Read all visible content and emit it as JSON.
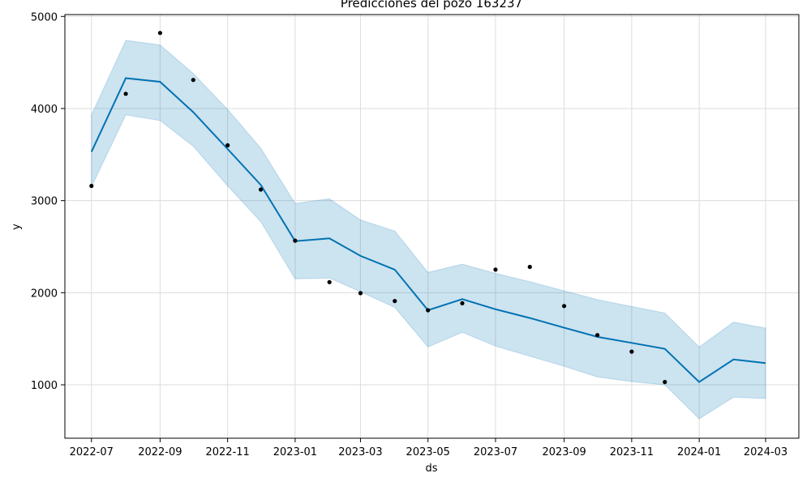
{
  "chart_data": {
    "type": "line",
    "title": "Predicciones del pozo 163237",
    "xlabel": "ds",
    "ylabel": "y",
    "xlim": [
      "2022-06-07",
      "2024-03-31"
    ],
    "ylim": [
      420,
      5020
    ],
    "grid": true,
    "x_ticks": [
      "2022-07",
      "2022-09",
      "2022-11",
      "2023-01",
      "2023-03",
      "2023-05",
      "2023-07",
      "2023-09",
      "2023-11",
      "2024-01",
      "2024-03"
    ],
    "y_ticks": [
      1000,
      2000,
      3000,
      4000,
      5000
    ],
    "colors": {
      "forecast": "#0072b2",
      "band": "#0072b2",
      "actual": "#000000",
      "grid": "#dcdcdc"
    },
    "forecast": {
      "x": [
        "2022-07-01",
        "2022-08-01",
        "2022-09-01",
        "2022-10-01",
        "2022-11-01",
        "2022-12-01",
        "2023-01-01",
        "2023-02-01",
        "2023-03-01",
        "2023-04-01",
        "2023-05-01",
        "2023-06-01",
        "2023-07-01",
        "2023-08-01",
        "2023-09-01",
        "2023-10-01",
        "2023-11-01",
        "2023-12-01",
        "2024-01-01",
        "2024-02-01",
        "2024-03-01"
      ],
      "yhat": [
        3530,
        4330,
        4290,
        3960,
        3560,
        3170,
        2560,
        2590,
        2400,
        2250,
        1810,
        1930,
        1820,
        1725,
        1620,
        1520,
        1455,
        1390,
        1030,
        1275,
        1235
      ],
      "yhat_lower": [
        3150,
        3930,
        3870,
        3590,
        3160,
        2770,
        2150,
        2160,
        2010,
        1840,
        1410,
        1570,
        1420,
        1310,
        1200,
        1085,
        1035,
        1000,
        630,
        865,
        850
      ],
      "yhat_upper": [
        3930,
        4740,
        4690,
        4380,
        3990,
        3570,
        2970,
        3020,
        2790,
        2670,
        2220,
        2310,
        2210,
        2120,
        2020,
        1925,
        1850,
        1780,
        1410,
        1680,
        1615
      ]
    },
    "actual": {
      "x": [
        "2022-07-01",
        "2022-08-01",
        "2022-09-01",
        "2022-10-01",
        "2022-11-01",
        "2022-12-01",
        "2023-01-01",
        "2023-02-01",
        "2023-03-01",
        "2023-04-01",
        "2023-05-01",
        "2023-06-01",
        "2023-07-01",
        "2023-08-01",
        "2023-09-01",
        "2023-10-01",
        "2023-11-01",
        "2023-12-01"
      ],
      "y": [
        3160,
        4160,
        4820,
        4310,
        3600,
        3120,
        2565,
        2115,
        1995,
        1910,
        1810,
        1885,
        2250,
        2280,
        1855,
        1540,
        1360,
        1030
      ]
    }
  }
}
